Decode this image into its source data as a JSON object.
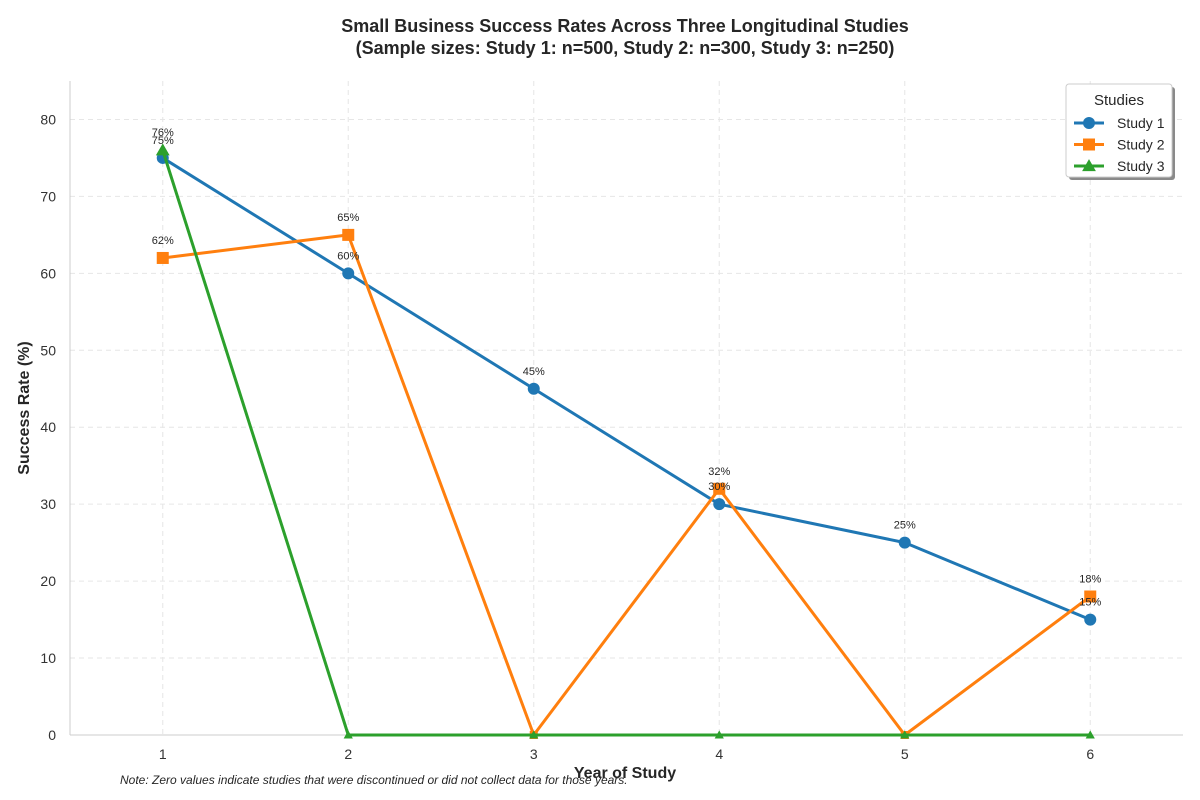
{
  "chart_data": {
    "type": "line",
    "title_line1": "Small Business Success Rates Across Three Longitudinal Studies",
    "title_line2": "(Sample sizes: Study 1: n=500, Study 2: n=300, Study 3: n=250)",
    "xlabel": "Year of Study",
    "ylabel": "Success Rate (%)",
    "x": [
      1,
      2,
      3,
      4,
      5,
      6
    ],
    "xlim": [
      0.5,
      6.5
    ],
    "ylim": [
      0,
      85
    ],
    "yticks": [
      0,
      10,
      20,
      30,
      40,
      50,
      60,
      70,
      80
    ],
    "grid": true,
    "legend": {
      "title": "Studies",
      "placement": "top-right"
    },
    "series": [
      {
        "name": "Study 1",
        "values": [
          75,
          60,
          45,
          30,
          25,
          15
        ],
        "color": "#1f77b4",
        "marker": "circle"
      },
      {
        "name": "Study 2",
        "values": [
          62,
          65,
          0,
          32,
          0,
          18
        ],
        "color": "#ff7f0e",
        "marker": "square"
      },
      {
        "name": "Study 3",
        "values": [
          76,
          0,
          0,
          0,
          0,
          0
        ],
        "color": "#2ca02c",
        "marker": "triangle"
      }
    ],
    "label_suffix": "%",
    "note": "Note: Zero values indicate studies that were discontinued or did not collect data for those years."
  }
}
